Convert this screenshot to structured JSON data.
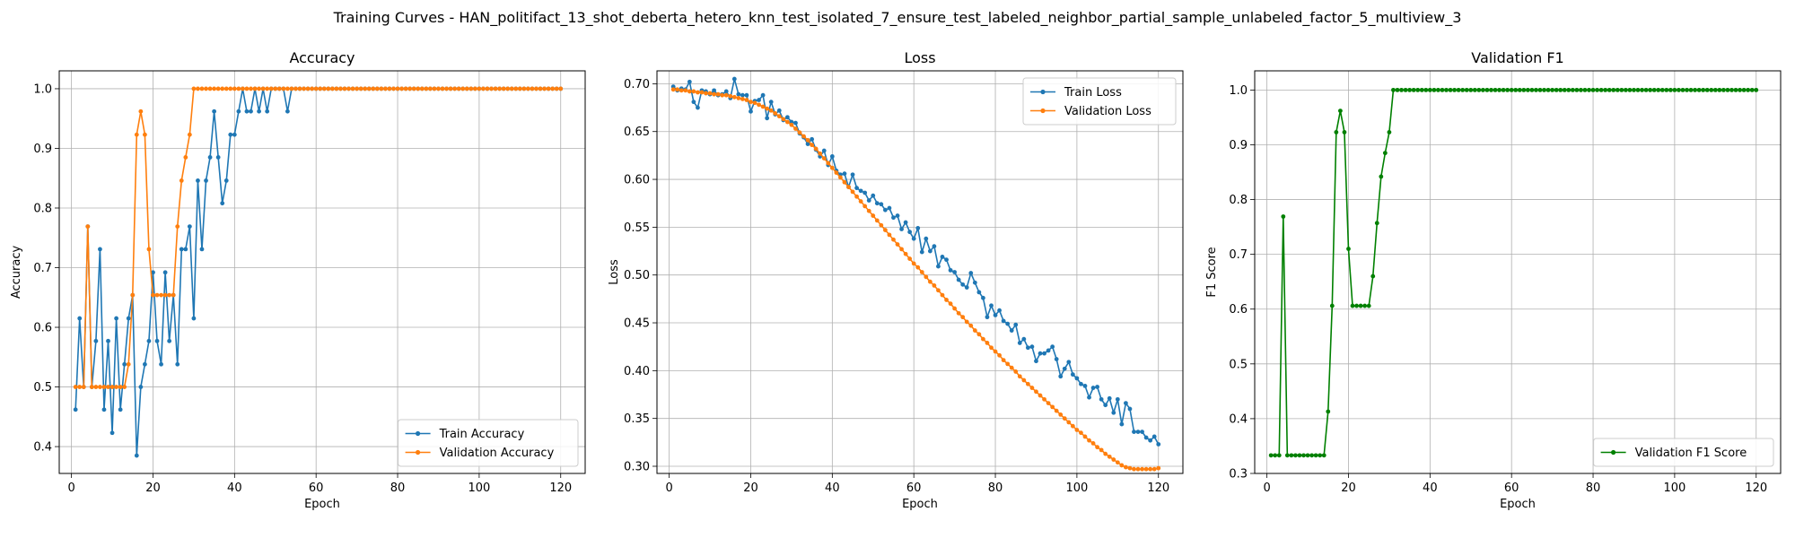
{
  "figure": {
    "suptitle": "Training Curves - HAN_politifact_13_shot_deberta_hetero_knn_test_isolated_7_ensure_test_labeled_neighbor_partial_sample_unlabeled_factor_5_multiview_3"
  },
  "chart_data": [
    {
      "type": "line",
      "title": "Accuracy",
      "xlabel": "Epoch",
      "ylabel": "Accuracy",
      "xlim": [
        -3,
        126
      ],
      "ylim": [
        0.355,
        1.03
      ],
      "xticks": [
        0,
        20,
        40,
        60,
        80,
        100,
        120
      ],
      "yticks": [
        0.4,
        0.5,
        0.6,
        0.7,
        0.8,
        0.9,
        1.0
      ],
      "ytick_labels": [
        "0.4",
        "0.5",
        "0.6",
        "0.7",
        "0.8",
        "0.9",
        "1.0"
      ],
      "grid": true,
      "legend_position": "lower-right",
      "series": [
        {
          "name": "Train Accuracy",
          "color": "#1f77b4",
          "x_start": 1,
          "values": [
            0.462,
            0.615,
            0.5,
            0.769,
            0.5,
            0.577,
            0.731,
            0.462,
            0.577,
            0.423,
            0.615,
            0.462,
            0.538,
            0.615,
            0.654,
            0.385,
            0.5,
            0.538,
            0.577,
            0.692,
            0.577,
            0.538,
            0.692,
            0.577,
            0.654,
            0.538,
            0.731,
            0.731,
            0.769,
            0.615,
            0.846,
            0.731,
            0.846,
            0.885,
            0.962,
            0.885,
            0.808,
            0.846,
            0.923,
            0.923,
            0.962,
            1.0,
            0.962,
            0.962,
            1.0,
            0.962,
            1.0,
            0.962,
            1.0,
            1.0,
            1.0,
            1.0,
            0.962,
            1.0,
            1.0,
            1.0,
            1.0,
            1.0,
            1.0,
            1.0,
            1.0,
            1.0,
            1.0,
            1.0,
            1.0,
            1.0,
            1.0,
            1.0,
            1.0,
            1.0,
            1.0,
            1.0,
            1.0,
            1.0,
            1.0,
            1.0,
            1.0,
            1.0,
            1.0,
            1.0,
            1.0,
            1.0,
            1.0,
            1.0,
            1.0,
            1.0,
            1.0,
            1.0,
            1.0,
            1.0,
            1.0,
            1.0,
            1.0,
            1.0,
            1.0,
            1.0,
            1.0,
            1.0,
            1.0,
            1.0,
            1.0,
            1.0,
            1.0,
            1.0,
            1.0,
            1.0,
            1.0,
            1.0,
            1.0,
            1.0,
            1.0,
            1.0,
            1.0,
            1.0,
            1.0,
            1.0,
            1.0,
            1.0,
            1.0,
            1.0
          ]
        },
        {
          "name": "Validation Accuracy",
          "color": "#ff7f0e",
          "x_start": 1,
          "values": [
            0.5,
            0.5,
            0.5,
            0.769,
            0.5,
            0.5,
            0.5,
            0.5,
            0.5,
            0.5,
            0.5,
            0.5,
            0.5,
            0.538,
            0.654,
            0.923,
            0.962,
            0.923,
            0.731,
            0.654,
            0.654,
            0.654,
            0.654,
            0.654,
            0.654,
            0.769,
            0.846,
            0.885,
            0.923,
            1.0,
            1.0,
            1.0,
            1.0,
            1.0,
            1.0,
            1.0,
            1.0,
            1.0,
            1.0,
            1.0,
            1.0,
            1.0,
            1.0,
            1.0,
            1.0,
            1.0,
            1.0,
            1.0,
            1.0,
            1.0,
            1.0,
            1.0,
            1.0,
            1.0,
            1.0,
            1.0,
            1.0,
            1.0,
            1.0,
            1.0,
            1.0,
            1.0,
            1.0,
            1.0,
            1.0,
            1.0,
            1.0,
            1.0,
            1.0,
            1.0,
            1.0,
            1.0,
            1.0,
            1.0,
            1.0,
            1.0,
            1.0,
            1.0,
            1.0,
            1.0,
            1.0,
            1.0,
            1.0,
            1.0,
            1.0,
            1.0,
            1.0,
            1.0,
            1.0,
            1.0,
            1.0,
            1.0,
            1.0,
            1.0,
            1.0,
            1.0,
            1.0,
            1.0,
            1.0,
            1.0,
            1.0,
            1.0,
            1.0,
            1.0,
            1.0,
            1.0,
            1.0,
            1.0,
            1.0,
            1.0,
            1.0,
            1.0,
            1.0,
            1.0,
            1.0,
            1.0,
            1.0,
            1.0,
            1.0,
            1.0
          ]
        }
      ]
    },
    {
      "type": "line",
      "title": "Loss",
      "xlabel": "Epoch",
      "ylabel": "Loss",
      "xlim": [
        -3,
        126
      ],
      "ylim": [
        0.2925,
        0.7135
      ],
      "xticks": [
        0,
        20,
        40,
        60,
        80,
        100,
        120
      ],
      "yticks": [
        0.3,
        0.35,
        0.4,
        0.45,
        0.5,
        0.55,
        0.6,
        0.65,
        0.7
      ],
      "ytick_labels": [
        "0.30",
        "0.35",
        "0.40",
        "0.45",
        "0.50",
        "0.55",
        "0.60",
        "0.65",
        "0.70"
      ],
      "grid": true,
      "legend_position": "upper-right",
      "series": [
        {
          "name": "Train Loss",
          "color": "#1f77b4",
          "x_start": 1,
          "values": [
            0.697,
            0.693,
            0.695,
            0.694,
            0.702,
            0.681,
            0.675,
            0.693,
            0.692,
            0.689,
            0.693,
            0.688,
            0.689,
            0.692,
            0.685,
            0.705,
            0.689,
            0.688,
            0.688,
            0.671,
            0.682,
            0.683,
            0.688,
            0.664,
            0.681,
            0.668,
            0.672,
            0.662,
            0.665,
            0.66,
            0.659,
            0.648,
            0.644,
            0.637,
            0.642,
            0.631,
            0.624,
            0.63,
            0.615,
            0.624,
            0.609,
            0.605,
            0.606,
            0.592,
            0.605,
            0.591,
            0.588,
            0.586,
            0.578,
            0.583,
            0.575,
            0.574,
            0.568,
            0.57,
            0.56,
            0.562,
            0.548,
            0.555,
            0.545,
            0.538,
            0.549,
            0.524,
            0.538,
            0.525,
            0.53,
            0.509,
            0.519,
            0.516,
            0.505,
            0.503,
            0.495,
            0.49,
            0.487,
            0.502,
            0.492,
            0.482,
            0.476,
            0.456,
            0.468,
            0.458,
            0.463,
            0.452,
            0.449,
            0.442,
            0.448,
            0.429,
            0.433,
            0.424,
            0.425,
            0.41,
            0.418,
            0.418,
            0.421,
            0.425,
            0.412,
            0.394,
            0.402,
            0.409,
            0.396,
            0.392,
            0.386,
            0.384,
            0.372,
            0.382,
            0.383,
            0.37,
            0.364,
            0.371,
            0.356,
            0.37,
            0.344,
            0.366,
            0.36,
            0.336,
            0.336,
            0.336,
            0.33,
            0.327,
            0.331,
            0.323
          ]
        },
        {
          "name": "Validation Loss",
          "color": "#ff7f0e",
          "x_start": 1,
          "values": [
            0.694,
            0.694,
            0.693,
            0.693,
            0.692,
            0.692,
            0.691,
            0.691,
            0.69,
            0.69,
            0.689,
            0.689,
            0.688,
            0.688,
            0.687,
            0.686,
            0.685,
            0.684,
            0.683,
            0.681,
            0.68,
            0.678,
            0.676,
            0.674,
            0.672,
            0.669,
            0.666,
            0.663,
            0.66,
            0.657,
            0.653,
            0.649,
            0.645,
            0.641,
            0.636,
            0.632,
            0.627,
            0.622,
            0.617,
            0.612,
            0.607,
            0.602,
            0.597,
            0.592,
            0.587,
            0.582,
            0.577,
            0.572,
            0.567,
            0.562,
            0.557,
            0.552,
            0.547,
            0.542,
            0.537,
            0.532,
            0.527,
            0.522,
            0.517,
            0.512,
            0.508,
            0.503,
            0.498,
            0.493,
            0.489,
            0.484,
            0.479,
            0.474,
            0.47,
            0.465,
            0.46,
            0.456,
            0.451,
            0.447,
            0.442,
            0.438,
            0.433,
            0.429,
            0.424,
            0.42,
            0.416,
            0.411,
            0.407,
            0.403,
            0.399,
            0.394,
            0.39,
            0.386,
            0.382,
            0.378,
            0.374,
            0.37,
            0.366,
            0.362,
            0.358,
            0.354,
            0.35,
            0.346,
            0.342,
            0.338,
            0.335,
            0.331,
            0.327,
            0.324,
            0.32,
            0.317,
            0.313,
            0.31,
            0.307,
            0.304,
            0.301,
            0.299,
            0.298,
            0.297,
            0.297,
            0.297,
            0.297,
            0.297,
            0.297,
            0.298
          ]
        }
      ]
    },
    {
      "type": "line",
      "title": "Validation F1",
      "xlabel": "Epoch",
      "ylabel": "F1 Score",
      "xlim": [
        -3,
        126
      ],
      "ylim": [
        0.3,
        1.035
      ],
      "xticks": [
        0,
        20,
        40,
        60,
        80,
        100,
        120
      ],
      "yticks": [
        0.3,
        0.4,
        0.5,
        0.6,
        0.7,
        0.8,
        0.9,
        1.0
      ],
      "ytick_labels": [
        "0.3",
        "0.4",
        "0.5",
        "0.6",
        "0.7",
        "0.8",
        "0.9",
        "1.0"
      ],
      "grid": true,
      "legend_position": "lower-right",
      "series": [
        {
          "name": "Validation F1 Score",
          "color": "#008000",
          "x_start": 1,
          "values": [
            0.333,
            0.333,
            0.333,
            0.769,
            0.333,
            0.333,
            0.333,
            0.333,
            0.333,
            0.333,
            0.333,
            0.333,
            0.333,
            0.333,
            0.413,
            0.606,
            0.923,
            0.962,
            0.923,
            0.71,
            0.606,
            0.606,
            0.606,
            0.606,
            0.606,
            0.66,
            0.757,
            0.842,
            0.885,
            0.923,
            1.0,
            1.0,
            1.0,
            1.0,
            1.0,
            1.0,
            1.0,
            1.0,
            1.0,
            1.0,
            1.0,
            1.0,
            1.0,
            1.0,
            1.0,
            1.0,
            1.0,
            1.0,
            1.0,
            1.0,
            1.0,
            1.0,
            1.0,
            1.0,
            1.0,
            1.0,
            1.0,
            1.0,
            1.0,
            1.0,
            1.0,
            1.0,
            1.0,
            1.0,
            1.0,
            1.0,
            1.0,
            1.0,
            1.0,
            1.0,
            1.0,
            1.0,
            1.0,
            1.0,
            1.0,
            1.0,
            1.0,
            1.0,
            1.0,
            1.0,
            1.0,
            1.0,
            1.0,
            1.0,
            1.0,
            1.0,
            1.0,
            1.0,
            1.0,
            1.0,
            1.0,
            1.0,
            1.0,
            1.0,
            1.0,
            1.0,
            1.0,
            1.0,
            1.0,
            1.0,
            1.0,
            1.0,
            1.0,
            1.0,
            1.0,
            1.0,
            1.0,
            1.0,
            1.0,
            1.0,
            1.0,
            1.0,
            1.0,
            1.0,
            1.0,
            1.0,
            1.0,
            1.0,
            1.0,
            1.0
          ]
        }
      ]
    }
  ]
}
